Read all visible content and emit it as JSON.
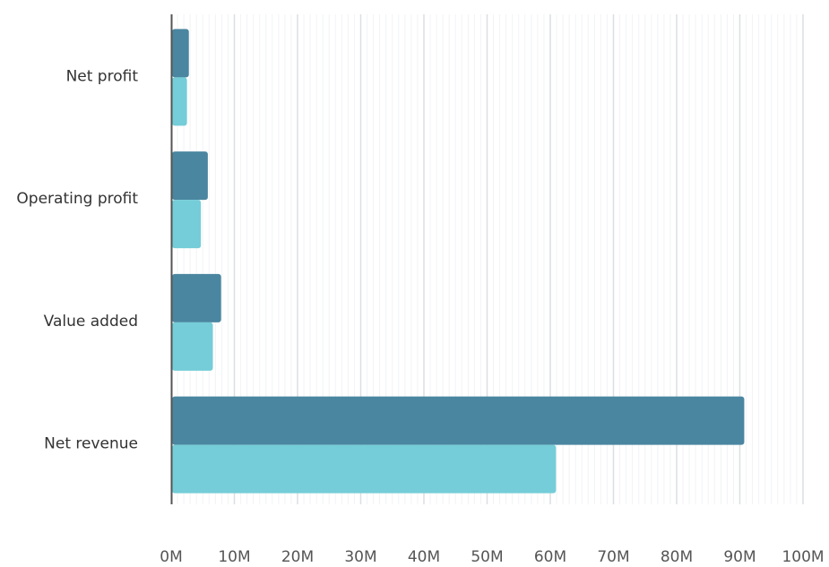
{
  "chart_data": {
    "type": "bar",
    "orientation": "horizontal",
    "categories": [
      "Net profit",
      "Operating profit",
      "Value added",
      "Net revenue"
    ],
    "series": [
      {
        "color": "#4a86a0",
        "values": [
          2.8,
          5.8,
          7.9,
          90.7
        ]
      },
      {
        "color": "#74cdd8",
        "values": [
          2.5,
          4.7,
          6.6,
          60.9
        ]
      }
    ],
    "x_ticks": [
      "0M",
      "10M",
      "20M",
      "30M",
      "40M",
      "50M",
      "60M",
      "70M",
      "80M",
      "90M",
      "100M"
    ],
    "xlim": [
      0,
      100
    ],
    "grid": true,
    "legend": "none"
  }
}
